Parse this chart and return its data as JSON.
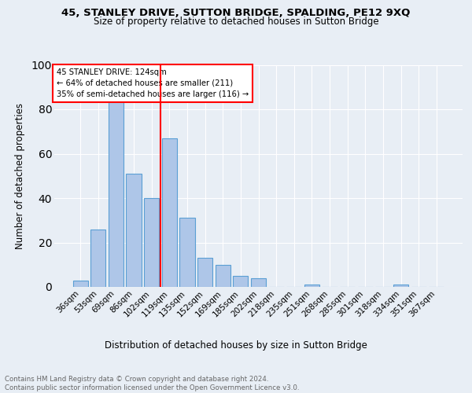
{
  "title1": "45, STANLEY DRIVE, SUTTON BRIDGE, SPALDING, PE12 9XQ",
  "title2": "Size of property relative to detached houses in Sutton Bridge",
  "xlabel": "Distribution of detached houses by size in Sutton Bridge",
  "ylabel": "Number of detached properties",
  "footer": "Contains HM Land Registry data © Crown copyright and database right 2024.\nContains public sector information licensed under the Open Government Licence v3.0.",
  "categories": [
    "36sqm",
    "53sqm",
    "69sqm",
    "86sqm",
    "102sqm",
    "119sqm",
    "135sqm",
    "152sqm",
    "169sqm",
    "185sqm",
    "202sqm",
    "218sqm",
    "235sqm",
    "251sqm",
    "268sqm",
    "285sqm",
    "301sqm",
    "318sqm",
    "334sqm",
    "351sqm",
    "367sqm"
  ],
  "values": [
    3,
    26,
    84,
    51,
    40,
    67,
    31,
    13,
    10,
    5,
    4,
    0,
    0,
    1,
    0,
    0,
    0,
    0,
    1,
    0,
    0
  ],
  "bar_color": "#aec6e8",
  "bar_edge_color": "#5a9fd4",
  "annotation_text_line1": "45 STANLEY DRIVE: 124sqm",
  "annotation_text_line2": "← 64% of detached houses are smaller (211)",
  "annotation_text_line3": "35% of semi-detached houses are larger (116) →",
  "background_color": "#e8eef5",
  "ylim": [
    0,
    100
  ],
  "yticks": [
    0,
    20,
    40,
    60,
    80,
    100
  ]
}
